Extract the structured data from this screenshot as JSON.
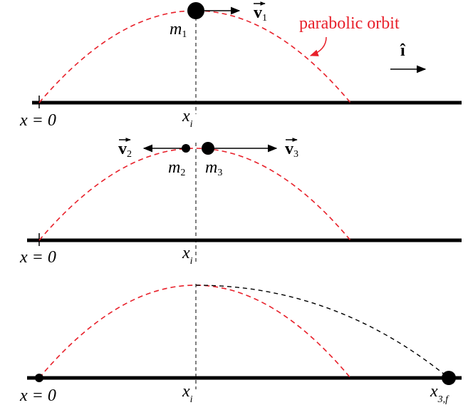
{
  "panels": [
    {
      "origin_label": "x = 0",
      "position_label": {
        "symbol": "x",
        "subscript": "i"
      },
      "masses": [
        {
          "symbol": "m",
          "subscript": "1"
        }
      ],
      "velocities": [
        {
          "symbol": "v",
          "subscript": "1"
        }
      ],
      "annotation": "parabolic orbit",
      "unit_vector": "î"
    },
    {
      "origin_label": "x = 0",
      "position_label": {
        "symbol": "x",
        "subscript": "i"
      },
      "masses": [
        {
          "symbol": "m",
          "subscript": "2"
        },
        {
          "symbol": "m",
          "subscript": "3"
        }
      ],
      "velocities": [
        {
          "symbol": "v",
          "subscript": "2"
        },
        {
          "symbol": "v",
          "subscript": "3"
        }
      ]
    },
    {
      "origin_label": "x = 0",
      "position_label": {
        "symbol": "x",
        "subscript": "i"
      },
      "final_label": {
        "symbol": "x",
        "subscript": "3,f"
      }
    }
  ]
}
